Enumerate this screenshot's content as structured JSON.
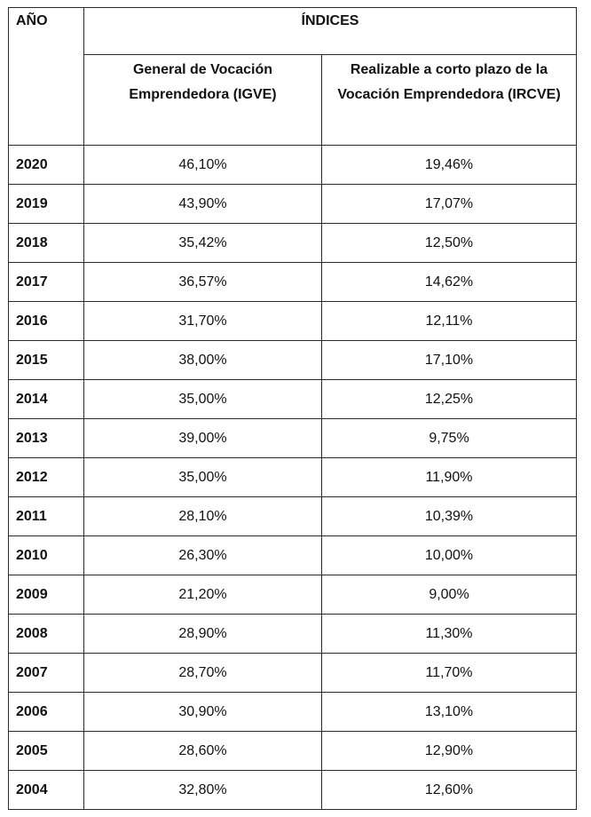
{
  "table": {
    "headers": {
      "year": "AÑO",
      "indices": "ÍNDICES",
      "igve": "General de Vocación Emprendedora (IGVE)",
      "ircve": "Realizable a corto plazo de la Vocación Emprendedora (IRCVE)"
    },
    "rows": [
      {
        "year": "2020",
        "igve": "46,10%",
        "ircve": "19,46%"
      },
      {
        "year": "2019",
        "igve": "43,90%",
        "ircve": "17,07%"
      },
      {
        "year": "2018",
        "igve": "35,42%",
        "ircve": "12,50%"
      },
      {
        "year": "2017",
        "igve": "36,57%",
        "ircve": "14,62%"
      },
      {
        "year": "2016",
        "igve": "31,70%",
        "ircve": "12,11%"
      },
      {
        "year": "2015",
        "igve": "38,00%",
        "ircve": "17,10%"
      },
      {
        "year": "2014",
        "igve": "35,00%",
        "ircve": "12,25%"
      },
      {
        "year": "2013",
        "igve": "39,00%",
        "ircve": "9,75%"
      },
      {
        "year": "2012",
        "igve": "35,00%",
        "ircve": "11,90%"
      },
      {
        "year": "2011",
        "igve": "28,10%",
        "ircve": "10,39%"
      },
      {
        "year": "2010",
        "igve": "26,30%",
        "ircve": "10,00%"
      },
      {
        "year": "2009",
        "igve": "21,20%",
        "ircve": "9,00%"
      },
      {
        "year": "2008",
        "igve": "28,90%",
        "ircve": "11,30%"
      },
      {
        "year": "2007",
        "igve": "28,70%",
        "ircve": "11,70%"
      },
      {
        "year": "2006",
        "igve": "30,90%",
        "ircve": "13,10%"
      },
      {
        "year": "2005",
        "igve": "28,60%",
        "ircve": "12,90%"
      },
      {
        "year": "2004",
        "igve": "32,80%",
        "ircve": "12,60%"
      }
    ]
  }
}
